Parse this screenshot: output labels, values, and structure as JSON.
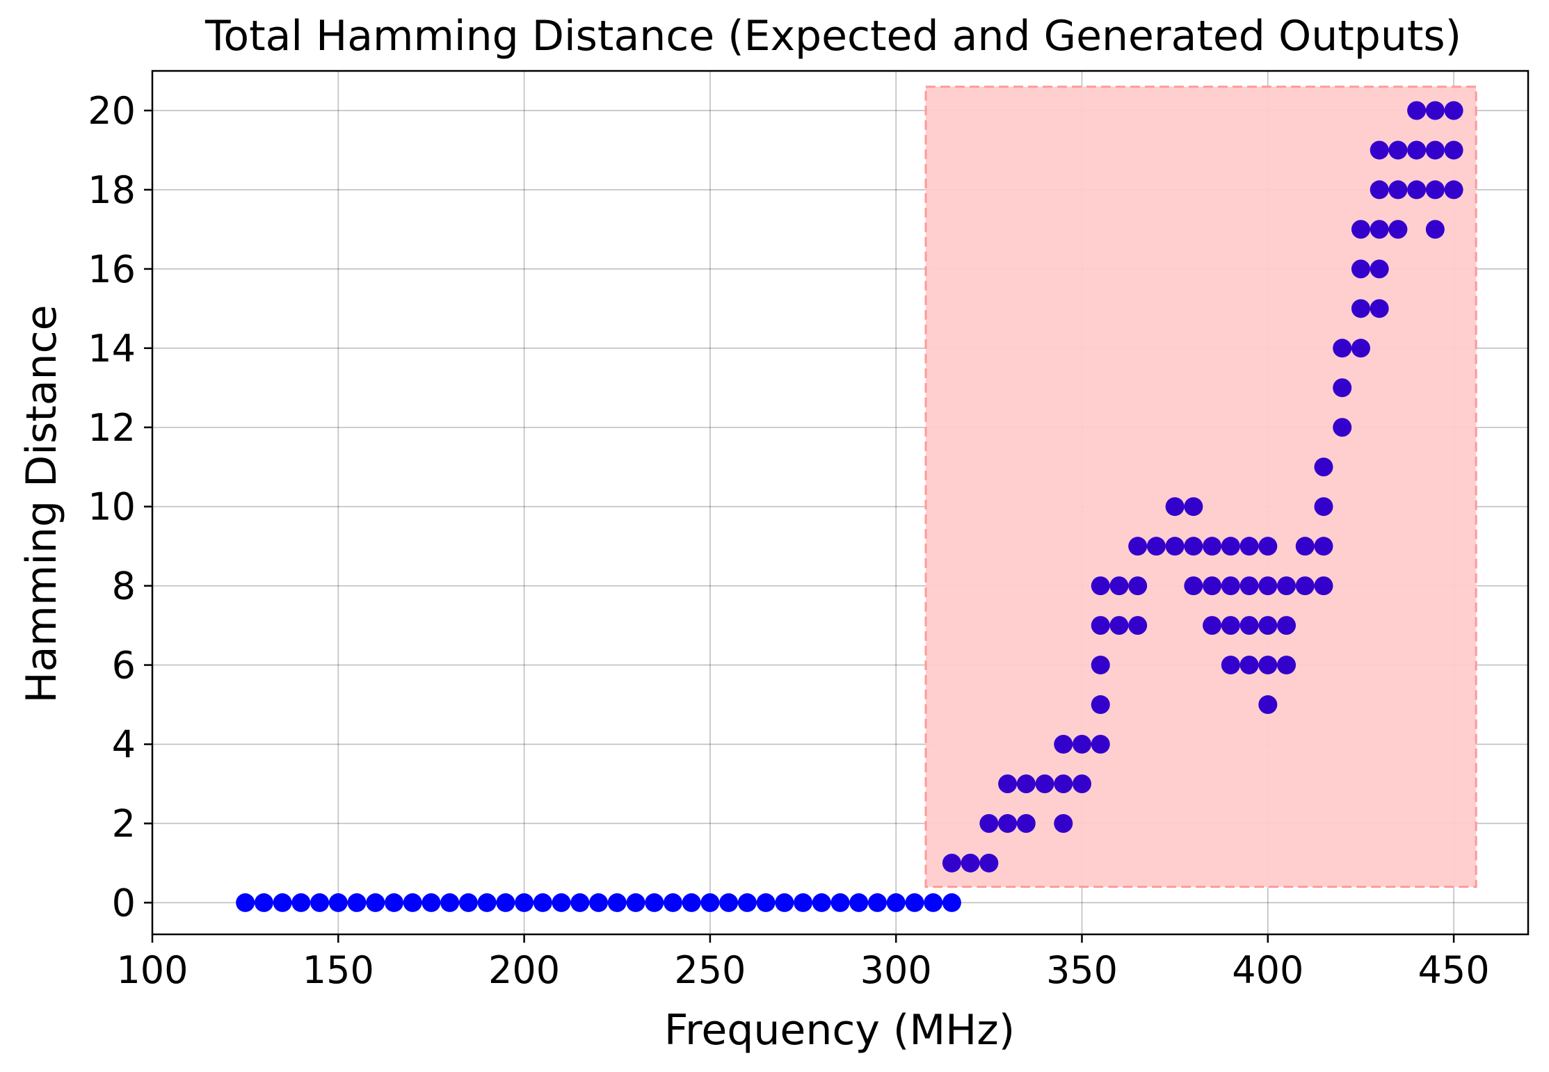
{
  "chart_data": {
    "type": "scatter",
    "title": "Total Hamming Distance (Expected and Generated Outputs)",
    "xlabel": "Frequency (MHz)",
    "ylabel": "Hamming Distance",
    "xlim": [
      100,
      470
    ],
    "ylim": [
      -0.8,
      21
    ],
    "xticks": [
      100,
      150,
      200,
      250,
      300,
      350,
      400,
      450
    ],
    "yticks": [
      0,
      2,
      4,
      6,
      8,
      10,
      12,
      14,
      16,
      18,
      20
    ],
    "grid": true,
    "marker_color": "#0000ff",
    "highlight_region": {
      "x": [
        308,
        456
      ],
      "y": [
        0.4,
        20.6
      ],
      "fill": "#ffcccc",
      "stroke": "#ff9999"
    },
    "series": [
      {
        "points": [
          [
            125,
            0
          ],
          [
            130,
            0
          ],
          [
            135,
            0
          ],
          [
            140,
            0
          ],
          [
            145,
            0
          ],
          [
            150,
            0
          ],
          [
            155,
            0
          ],
          [
            160,
            0
          ],
          [
            165,
            0
          ],
          [
            170,
            0
          ],
          [
            175,
            0
          ],
          [
            180,
            0
          ],
          [
            185,
            0
          ],
          [
            190,
            0
          ],
          [
            195,
            0
          ],
          [
            200,
            0
          ],
          [
            205,
            0
          ],
          [
            210,
            0
          ],
          [
            215,
            0
          ],
          [
            220,
            0
          ],
          [
            225,
            0
          ],
          [
            230,
            0
          ],
          [
            235,
            0
          ],
          [
            240,
            0
          ],
          [
            245,
            0
          ],
          [
            250,
            0
          ],
          [
            255,
            0
          ],
          [
            260,
            0
          ],
          [
            265,
            0
          ],
          [
            270,
            0
          ],
          [
            275,
            0
          ],
          [
            280,
            0
          ],
          [
            285,
            0
          ],
          [
            290,
            0
          ],
          [
            295,
            0
          ],
          [
            300,
            0
          ],
          [
            305,
            0
          ],
          [
            310,
            0
          ],
          [
            315,
            0
          ],
          [
            315,
            1
          ],
          [
            320,
            1
          ],
          [
            325,
            1
          ],
          [
            325,
            2
          ],
          [
            330,
            2
          ],
          [
            330,
            3
          ],
          [
            335,
            2
          ],
          [
            335,
            3
          ],
          [
            340,
            3
          ],
          [
            345,
            2
          ],
          [
            345,
            3
          ],
          [
            345,
            4
          ],
          [
            350,
            3
          ],
          [
            350,
            4
          ],
          [
            355,
            4
          ],
          [
            355,
            5
          ],
          [
            355,
            6
          ],
          [
            355,
            7
          ],
          [
            355,
            8
          ],
          [
            360,
            7
          ],
          [
            360,
            8
          ],
          [
            365,
            7
          ],
          [
            365,
            8
          ],
          [
            365,
            9
          ],
          [
            370,
            9
          ],
          [
            375,
            9
          ],
          [
            375,
            10
          ],
          [
            380,
            8
          ],
          [
            380,
            9
          ],
          [
            380,
            10
          ],
          [
            385,
            7
          ],
          [
            385,
            8
          ],
          [
            385,
            9
          ],
          [
            390,
            6
          ],
          [
            390,
            7
          ],
          [
            390,
            8
          ],
          [
            390,
            9
          ],
          [
            395,
            6
          ],
          [
            395,
            7
          ],
          [
            395,
            8
          ],
          [
            395,
            9
          ],
          [
            400,
            5
          ],
          [
            400,
            6
          ],
          [
            400,
            7
          ],
          [
            400,
            8
          ],
          [
            400,
            9
          ],
          [
            405,
            6
          ],
          [
            405,
            7
          ],
          [
            405,
            8
          ],
          [
            410,
            8
          ],
          [
            410,
            9
          ],
          [
            415,
            8
          ],
          [
            415,
            9
          ],
          [
            415,
            10
          ],
          [
            415,
            11
          ],
          [
            420,
            12
          ],
          [
            420,
            13
          ],
          [
            420,
            14
          ],
          [
            425,
            14
          ],
          [
            425,
            15
          ],
          [
            425,
            16
          ],
          [
            425,
            17
          ],
          [
            430,
            15
          ],
          [
            430,
            16
          ],
          [
            430,
            17
          ],
          [
            430,
            18
          ],
          [
            430,
            19
          ],
          [
            435,
            17
          ],
          [
            435,
            18
          ],
          [
            435,
            19
          ],
          [
            440,
            18
          ],
          [
            440,
            19
          ],
          [
            440,
            20
          ],
          [
            445,
            17
          ],
          [
            445,
            18
          ],
          [
            445,
            19
          ],
          [
            445,
            20
          ],
          [
            450,
            18
          ],
          [
            450,
            19
          ],
          [
            450,
            20
          ]
        ]
      }
    ]
  }
}
